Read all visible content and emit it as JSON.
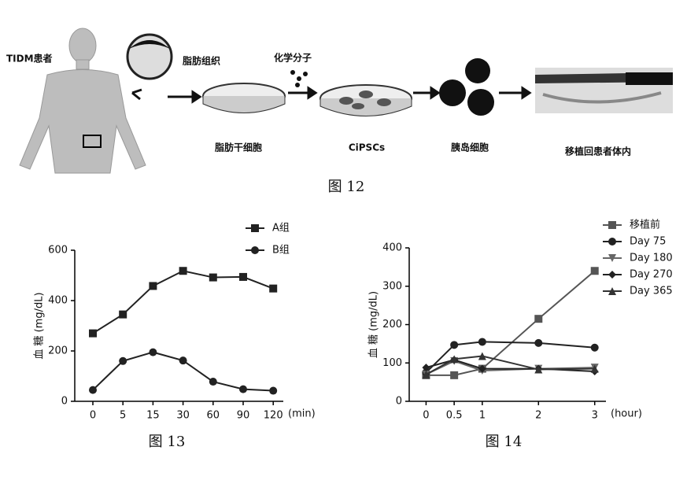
{
  "diagram": {
    "patient": "TIDM患者",
    "tissue": "脂肪组织",
    "chemical": "化学分子",
    "stem_cells": "脂肪干细胞",
    "ipsc": "CiPSCs",
    "islet": "胰岛细胞",
    "transplant": "移植回患者体内",
    "caption": "图 12"
  },
  "chart_data": [
    {
      "type": "line",
      "caption": "图 13",
      "ylabel": "血 糖 (mg/dL)",
      "xlabel": "(min)",
      "categories": [
        "0",
        "5",
        "15",
        "30",
        "60",
        "90",
        "120"
      ],
      "ylim": [
        0,
        600
      ],
      "yticks": [
        0,
        200,
        400,
        600
      ],
      "legend": "top-right",
      "series": [
        {
          "name": "A组",
          "color": "#222222",
          "marker": "square",
          "values": [
            270,
            345,
            458,
            518,
            492,
            494,
            448
          ]
        },
        {
          "name": "B组",
          "color": "#222222",
          "marker": "circle",
          "values": [
            45,
            160,
            195,
            162,
            78,
            48,
            42
          ]
        }
      ]
    },
    {
      "type": "line",
      "caption": "图 14",
      "ylabel": "血 糖 (mg/dL)",
      "xlabel": "(hour)",
      "x": [
        0,
        0.5,
        1,
        2,
        3
      ],
      "xlim": [
        -0.3,
        3.2
      ],
      "xticks": [
        0,
        0.5,
        1,
        2,
        3
      ],
      "ylim": [
        0,
        400
      ],
      "yticks": [
        0,
        100,
        200,
        300,
        400
      ],
      "legend": "top-right",
      "series": [
        {
          "name": "移植前",
          "color": "#555555",
          "marker": "square",
          "values": [
            68,
            68,
            85,
            215,
            340
          ]
        },
        {
          "name": "Day 75",
          "color": "#222222",
          "marker": "circle",
          "values": [
            75,
            147,
            155,
            152,
            140
          ]
        },
        {
          "name": "Day 180",
          "color": "#666666",
          "marker": "tri-down",
          "values": [
            70,
            105,
            80,
            85,
            88
          ]
        },
        {
          "name": "Day 270",
          "color": "#222222",
          "marker": "diamond",
          "values": [
            88,
            108,
            85,
            85,
            78
          ]
        },
        {
          "name": "Day 365",
          "color": "#333333",
          "marker": "triangle",
          "values": [
            70,
            110,
            118,
            83,
            85
          ]
        }
      ]
    }
  ]
}
